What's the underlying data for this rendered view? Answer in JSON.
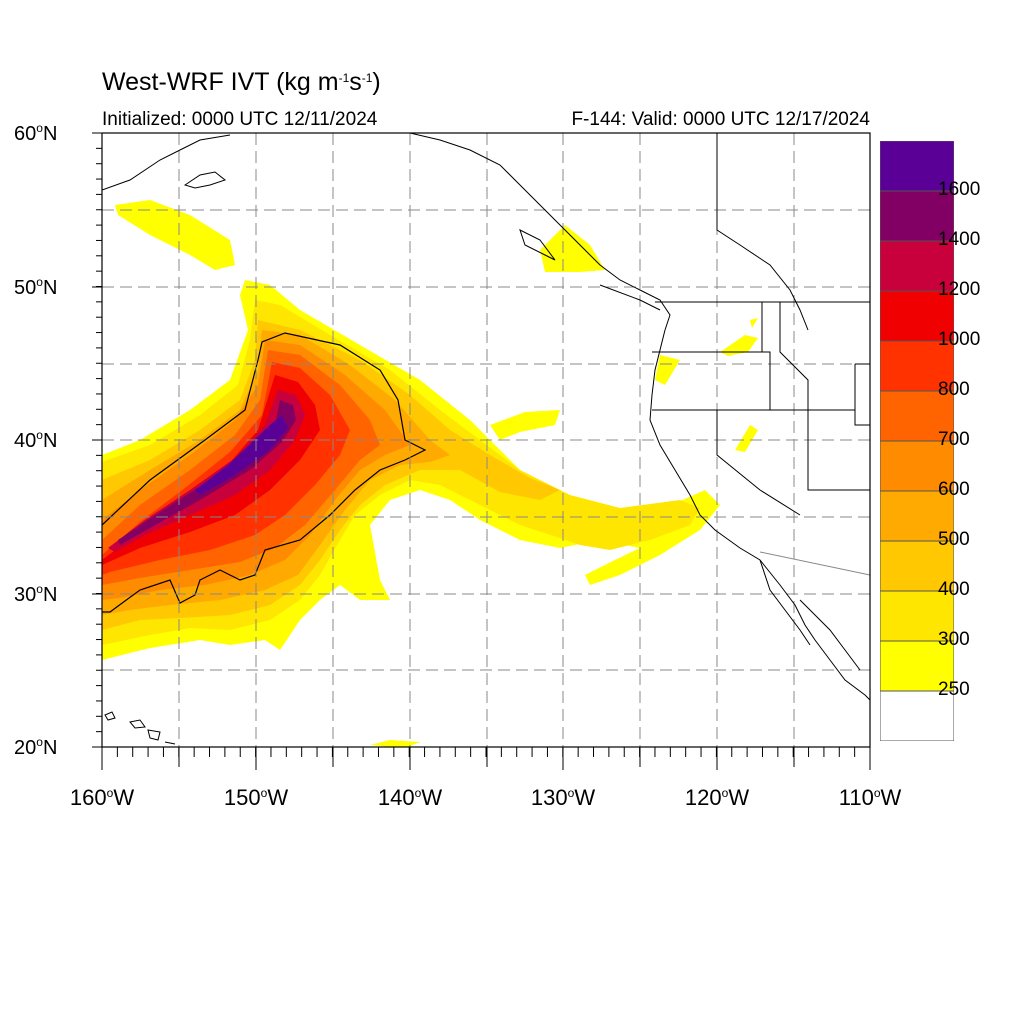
{
  "title": {
    "main": "West-WRF IVT (kg m",
    "sup1": "-1",
    "mid": "s",
    "sup2": "-1",
    "end": ")"
  },
  "subtitle_left": "Initialized: 0000 UTC 12/11/2024",
  "subtitle_right": "F-144: Valid: 0000 UTC 12/17/2024",
  "axes": {
    "lat_ticks": [
      {
        "num": "60",
        "unit": "o",
        "hemi": "N"
      },
      {
        "num": "50",
        "unit": "o",
        "hemi": "N"
      },
      {
        "num": "40",
        "unit": "o",
        "hemi": "N"
      },
      {
        "num": "30",
        "unit": "o",
        "hemi": "N"
      },
      {
        "num": "20",
        "unit": "o",
        "hemi": "N"
      }
    ],
    "lon_ticks": [
      {
        "num": "160",
        "unit": "o",
        "hemi": "W"
      },
      {
        "num": "150",
        "unit": "o",
        "hemi": "W"
      },
      {
        "num": "140",
        "unit": "o",
        "hemi": "W"
      },
      {
        "num": "130",
        "unit": "o",
        "hemi": "W"
      },
      {
        "num": "120",
        "unit": "o",
        "hemi": "W"
      },
      {
        "num": "110",
        "unit": "o",
        "hemi": "W"
      }
    ],
    "lat_range": [
      20,
      60
    ],
    "lon_range": [
      -160,
      -110
    ],
    "grid": "dashed"
  },
  "colorbar": {
    "labels": [
      "1600",
      "1400",
      "1200",
      "1000",
      "800",
      "700",
      "600",
      "500",
      "400",
      "300",
      "250"
    ],
    "colors": [
      "#ffffff",
      "#ffff00",
      "#ffe600",
      "#ffc800",
      "#ffaa00",
      "#ff8c00",
      "#ff6400",
      "#ff3200",
      "#f00000",
      "#c8003c",
      "#820064",
      "#5a0096"
    ]
  },
  "legend_colors": {
    "white": "#ffffff",
    "yellow": "#ffff00",
    "gold": "#ffe600",
    "amber": "#ffc800",
    "orange_light": "#ffaa00",
    "orange": "#ff8c00",
    "orange_dark": "#ff6400",
    "red_orange": "#ff3200",
    "red": "#f00000",
    "crimson": "#c8003c",
    "magenta": "#820064",
    "purple": "#5a0096"
  }
}
